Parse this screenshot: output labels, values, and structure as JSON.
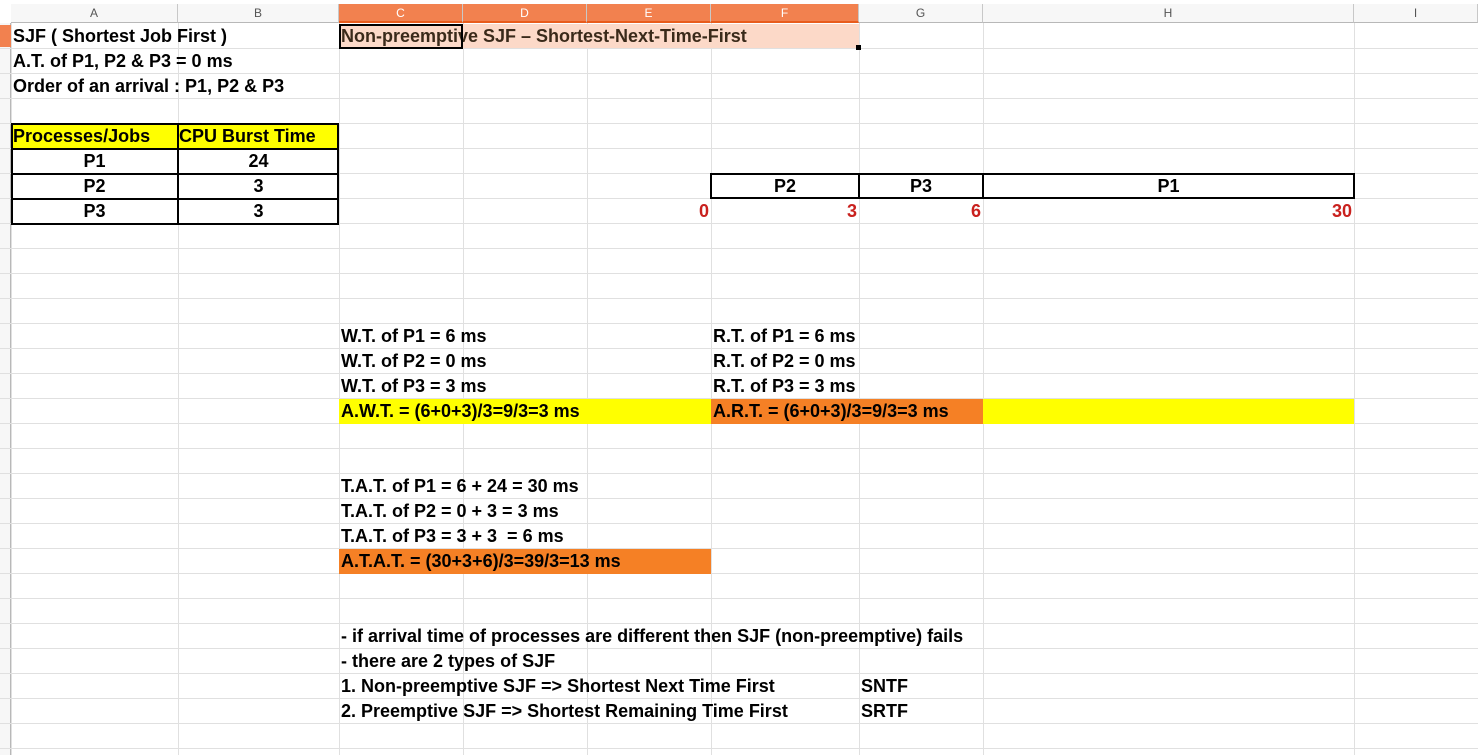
{
  "columns": [
    "A",
    "B",
    "C",
    "D",
    "E",
    "F",
    "G",
    "H",
    "I"
  ],
  "header": {
    "title": "SJF ( Shortest Job First )",
    "arrival": "A.T. of P1, P2 & P3 = 0 ms",
    "order": "Order of an arrival : P1, P2 & P3",
    "method": "Non-preemptive SJF – Shortest-Next-Time-First"
  },
  "table": {
    "headers": [
      "Processes/Jobs",
      "CPU Burst Time"
    ],
    "rows": [
      {
        "process": "P1",
        "burst": "24"
      },
      {
        "process": "P2",
        "burst": "3"
      },
      {
        "process": "P3",
        "burst": "3"
      }
    ]
  },
  "gantt": {
    "blocks": [
      "P2",
      "P3",
      "P1"
    ],
    "times": [
      "0",
      "3",
      "6",
      "30"
    ]
  },
  "waiting": {
    "lines": [
      "W.T. of P1 = 6 ms",
      "W.T. of P2 = 0 ms",
      "W.T. of P3 = 3 ms"
    ],
    "average": "A.W.T. = (6+0+3)/3=9/3=3 ms"
  },
  "response": {
    "lines": [
      "R.T. of P1 = 6 ms",
      "R.T. of P2 = 0 ms",
      "R.T. of P3 = 3 ms"
    ],
    "average": "A.R.T. = (6+0+3)/3=9/3=3 ms"
  },
  "turnaround": {
    "lines": [
      "T.A.T. of P1 = 6 + 24 = 30 ms",
      "T.A.T. of P2 = 0 + 3 = 3 ms",
      "T.A.T. of P3 = 3 + 3  = 6 ms"
    ],
    "average": "A.T.A.T. = (30+3+6)/3=39/3=13 ms"
  },
  "notes": {
    "line1": "- if arrival time of processes are different then SJF (non-preemptive) fails",
    "line2": "- there are 2 types of SJF",
    "type1": "1. Non-preemptive SJF => Shortest Next Time First",
    "type1_abbr": "SNTF",
    "type2": "2. Preemptive SJF => Shortest Remaining Time First",
    "type2_abbr": "SRTF"
  },
  "colors": {
    "yellow": "#ffff00",
    "orange": "#f58025",
    "peach": "#fcd9c8",
    "red": "#c9211e",
    "selected_header": "#f2814f"
  }
}
